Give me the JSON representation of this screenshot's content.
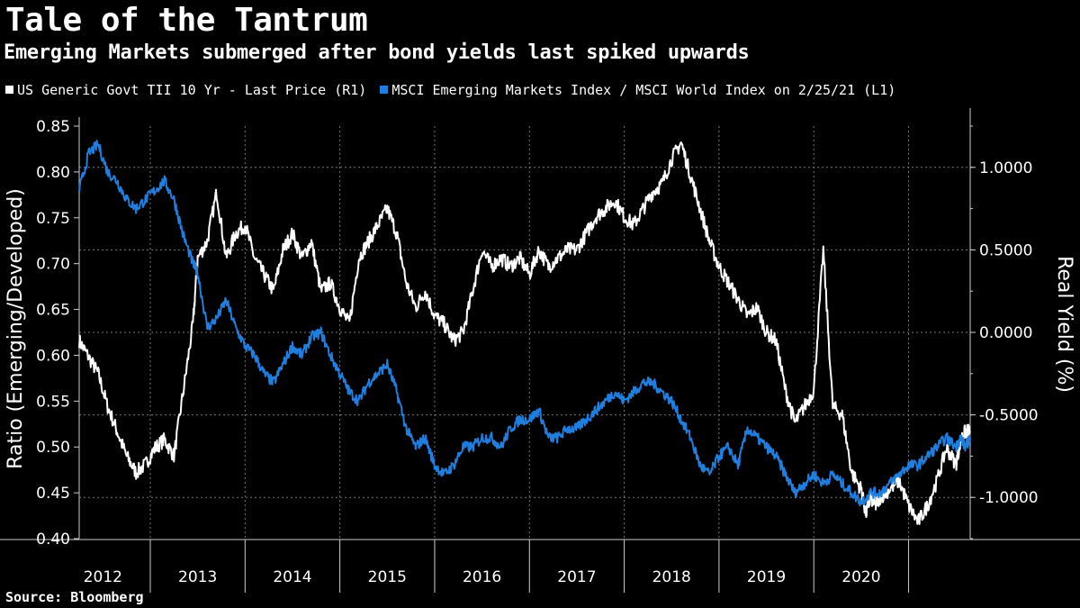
{
  "chart_data": {
    "type": "line",
    "title": "Tale of the Tantrum",
    "subtitle": "Emerging Markets submerged after bond yields last spiked upwards",
    "source": "Source: Bloomberg",
    "ylabel_left": "Ratio (Emerging/Developed)",
    "ylabel_right": "Real Yield (%)",
    "left_ticks": [
      "0.85",
      "0.80",
      "0.75",
      "0.70",
      "0.65",
      "0.60",
      "0.55",
      "0.50",
      "0.45",
      "0.40"
    ],
    "right_ticks": [
      "1.0000",
      "0.5000",
      "0.0000",
      "-0.5000",
      "-1.0000"
    ],
    "ylim_left": [
      0.4,
      0.85
    ],
    "ylim_right": [
      -1.25,
      1.25
    ],
    "x_categories": [
      "2012",
      "2013",
      "2014",
      "2015",
      "2016",
      "2017",
      "2018",
      "2019",
      "2020"
    ],
    "xlim": [
      2011.75,
      2021.15
    ],
    "grid": "dashed",
    "series": [
      {
        "name": "US Generic Govt TII 10 Yr - Last Price (R1)",
        "axis": "right",
        "color": "#ffffff",
        "x": [
          2011.75,
          2011.85,
          2011.95,
          2012.05,
          2012.15,
          2012.25,
          2012.35,
          2012.45,
          2012.55,
          2012.65,
          2012.75,
          2012.85,
          2012.95,
          2013.0,
          2013.1,
          2013.2,
          2013.3,
          2013.4,
          2013.5,
          2013.6,
          2013.7,
          2013.8,
          2013.9,
          2014.0,
          2014.1,
          2014.2,
          2014.3,
          2014.4,
          2014.5,
          2014.6,
          2014.7,
          2014.8,
          2014.9,
          2015.0,
          2015.1,
          2015.2,
          2015.3,
          2015.4,
          2015.5,
          2015.6,
          2015.7,
          2015.8,
          2015.9,
          2016.0,
          2016.1,
          2016.2,
          2016.3,
          2016.4,
          2016.5,
          2016.6,
          2016.7,
          2016.8,
          2016.9,
          2017.0,
          2017.1,
          2017.2,
          2017.3,
          2017.4,
          2017.5,
          2017.6,
          2017.7,
          2017.8,
          2017.9,
          2018.0,
          2018.1,
          2018.2,
          2018.3,
          2018.4,
          2018.5,
          2018.6,
          2018.7,
          2018.8,
          2018.9,
          2019.0,
          2019.1,
          2019.2,
          2019.3,
          2019.4,
          2019.5,
          2019.6,
          2019.7,
          2019.8,
          2019.9,
          2020.0,
          2020.05,
          2020.1,
          2020.15,
          2020.2,
          2020.3,
          2020.4,
          2020.5,
          2020.6,
          2020.7,
          2020.8,
          2020.9,
          2021.0,
          2021.05,
          2021.1,
          2021.15
        ],
        "values": [
          -0.05,
          -0.15,
          -0.25,
          -0.45,
          -0.6,
          -0.75,
          -0.85,
          -0.8,
          -0.7,
          -0.65,
          -0.75,
          -0.35,
          0.05,
          0.45,
          0.55,
          0.85,
          0.45,
          0.6,
          0.65,
          0.45,
          0.35,
          0.25,
          0.5,
          0.6,
          0.45,
          0.55,
          0.25,
          0.3,
          0.15,
          0.05,
          0.45,
          0.55,
          0.65,
          0.75,
          0.6,
          0.3,
          0.15,
          0.25,
          0.1,
          0.05,
          -0.05,
          0.0,
          0.25,
          0.5,
          0.4,
          0.45,
          0.4,
          0.45,
          0.35,
          0.5,
          0.4,
          0.45,
          0.5,
          0.5,
          0.6,
          0.7,
          0.75,
          0.8,
          0.7,
          0.65,
          0.75,
          0.85,
          0.9,
          1.05,
          1.15,
          0.95,
          0.75,
          0.55,
          0.4,
          0.3,
          0.2,
          0.1,
          0.15,
          0.0,
          -0.05,
          -0.35,
          -0.55,
          -0.45,
          -0.35,
          0.5,
          -0.45,
          -0.5,
          -0.85,
          -0.95,
          -1.1,
          -1.0,
          -1.05,
          -1.0,
          -0.95,
          -0.9,
          -1.05,
          -1.15,
          -1.05,
          -0.9,
          -0.7,
          -0.8,
          -0.65,
          -0.6,
          -0.6
        ]
      },
      {
        "name": "MSCI Emerging Markets Index / MSCI World Index on 2/25/21 (L1)",
        "axis": "left",
        "color": "#1f7fe0",
        "x": [
          2011.75,
          2011.85,
          2011.95,
          2012.05,
          2012.15,
          2012.25,
          2012.35,
          2012.45,
          2012.55,
          2012.65,
          2012.75,
          2012.85,
          2012.95,
          2013.0,
          2013.1,
          2013.2,
          2013.3,
          2013.4,
          2013.5,
          2013.6,
          2013.7,
          2013.8,
          2013.9,
          2014.0,
          2014.1,
          2014.2,
          2014.3,
          2014.4,
          2014.5,
          2014.6,
          2014.7,
          2014.8,
          2014.9,
          2015.0,
          2015.1,
          2015.2,
          2015.3,
          2015.4,
          2015.5,
          2015.6,
          2015.7,
          2015.8,
          2015.9,
          2016.0,
          2016.1,
          2016.2,
          2016.3,
          2016.4,
          2016.5,
          2016.6,
          2016.7,
          2016.8,
          2016.9,
          2017.0,
          2017.1,
          2017.2,
          2017.3,
          2017.4,
          2017.5,
          2017.6,
          2017.7,
          2017.8,
          2017.9,
          2018.0,
          2018.1,
          2018.2,
          2018.3,
          2018.4,
          2018.5,
          2018.6,
          2018.7,
          2018.8,
          2018.9,
          2019.0,
          2019.1,
          2019.2,
          2019.3,
          2019.4,
          2019.5,
          2019.6,
          2019.7,
          2019.8,
          2019.9,
          2020.0,
          2020.1,
          2020.2,
          2020.3,
          2020.4,
          2020.5,
          2020.6,
          2020.7,
          2020.8,
          2020.9,
          2021.0,
          2021.05,
          2021.1,
          2021.15
        ],
        "values": [
          0.78,
          0.82,
          0.83,
          0.8,
          0.79,
          0.77,
          0.76,
          0.77,
          0.78,
          0.79,
          0.77,
          0.73,
          0.7,
          0.69,
          0.63,
          0.64,
          0.66,
          0.63,
          0.61,
          0.6,
          0.58,
          0.57,
          0.59,
          0.61,
          0.6,
          0.62,
          0.625,
          0.6,
          0.58,
          0.56,
          0.55,
          0.57,
          0.58,
          0.59,
          0.56,
          0.52,
          0.5,
          0.51,
          0.48,
          0.47,
          0.48,
          0.5,
          0.5,
          0.51,
          0.51,
          0.5,
          0.52,
          0.53,
          0.53,
          0.54,
          0.51,
          0.51,
          0.52,
          0.52,
          0.53,
          0.54,
          0.55,
          0.56,
          0.55,
          0.56,
          0.57,
          0.57,
          0.56,
          0.55,
          0.53,
          0.51,
          0.48,
          0.47,
          0.49,
          0.5,
          0.48,
          0.52,
          0.51,
          0.5,
          0.49,
          0.47,
          0.45,
          0.46,
          0.47,
          0.46,
          0.47,
          0.46,
          0.45,
          0.44,
          0.45,
          0.45,
          0.46,
          0.47,
          0.48,
          0.48,
          0.49,
          0.5,
          0.51,
          0.5,
          0.51,
          0.5,
          0.51
        ]
      }
    ]
  }
}
